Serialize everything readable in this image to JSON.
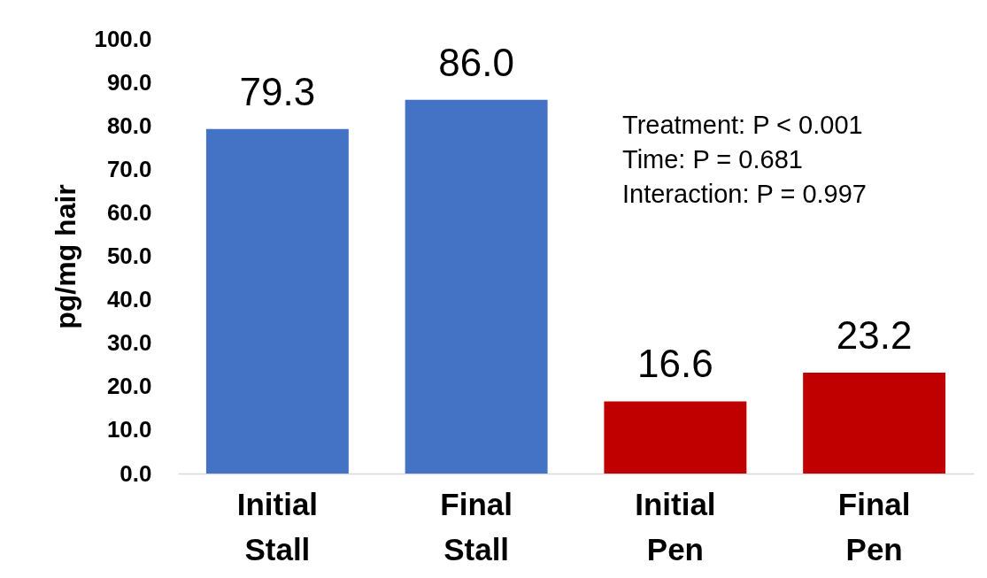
{
  "chart_data": {
    "type": "bar",
    "ylabel": "pg/mg hair",
    "categories": [
      "Initial Stall",
      "Final Stall",
      "Initial Pen",
      "Final Pen"
    ],
    "values": [
      79.3,
      86.0,
      16.6,
      23.2
    ],
    "colors": [
      "#4472c4",
      "#4472c4",
      "#c00000",
      "#c00000"
    ],
    "value_labels": [
      "79.3",
      "86.0",
      "16.6",
      "23.2"
    ],
    "ylim": [
      0,
      100
    ],
    "yticks": [
      {
        "value": 0,
        "label": "0.0"
      },
      {
        "value": 10,
        "label": "10.0"
      },
      {
        "value": 20,
        "label": "20.0"
      },
      {
        "value": 30,
        "label": "30.0"
      },
      {
        "value": 40,
        "label": "40.0"
      },
      {
        "value": 50,
        "label": "50.0"
      },
      {
        "value": 60,
        "label": "60.0"
      },
      {
        "value": 70,
        "label": "70.0"
      },
      {
        "value": 80,
        "label": "80.0"
      },
      {
        "value": 90,
        "label": "90.0"
      },
      {
        "value": 100,
        "label": "100.0"
      }
    ],
    "annotations": [
      "Treatment: P < 0.001",
      "Time: P = 0.681",
      "Interaction: P = 0.997"
    ]
  }
}
